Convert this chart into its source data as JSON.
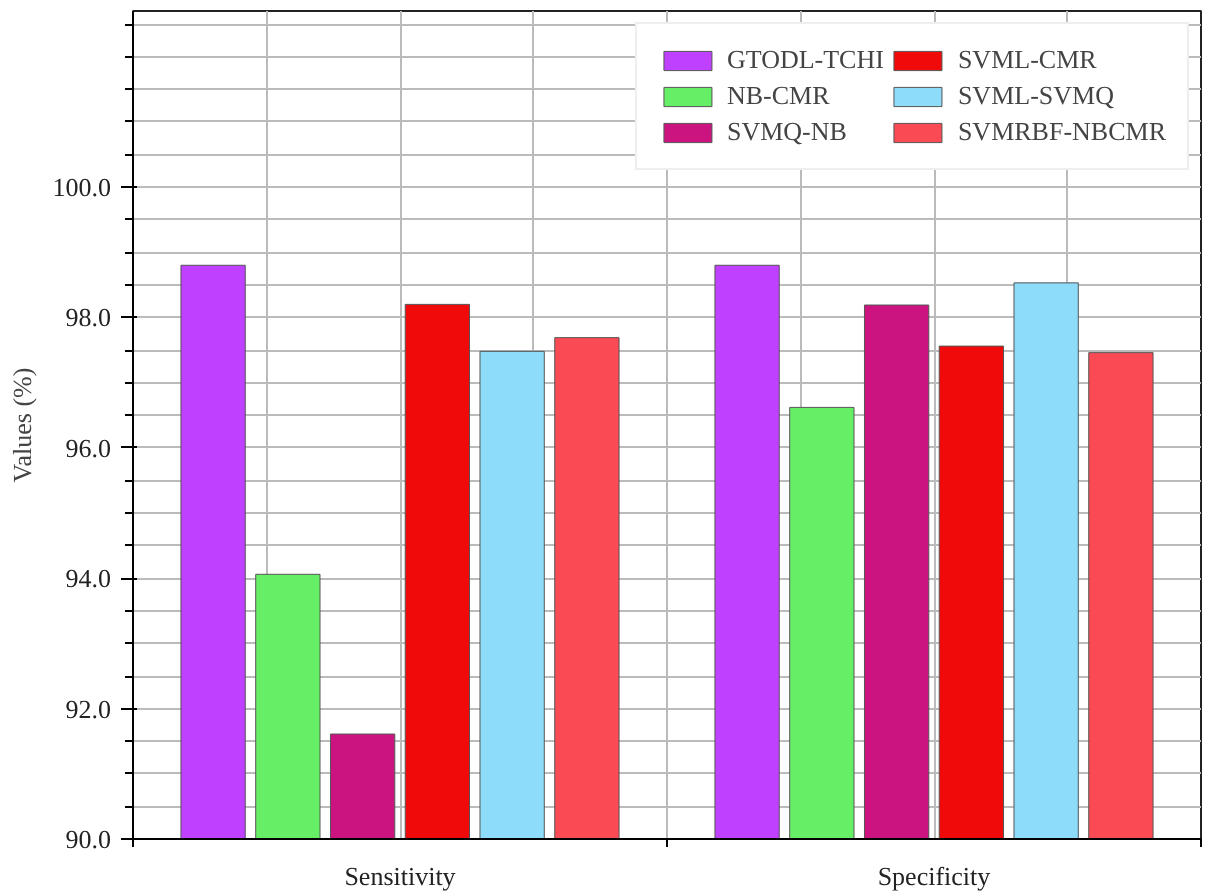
{
  "chart_data": {
    "type": "bar",
    "ylabel": "Values (%)",
    "categories": [
      "Sensitivity",
      "Specificity"
    ],
    "series": [
      {
        "name": "GTODL-TCHI",
        "color": "#bf40ff",
        "values": [
          98.8,
          98.8
        ]
      },
      {
        "name": "NB-CMR",
        "color": "#66ef66",
        "values": [
          94.06,
          96.62
        ]
      },
      {
        "name": "SVMQ-NB",
        "color": "#cc1480",
        "values": [
          91.61,
          98.19
        ]
      },
      {
        "name": "SVML-CMR",
        "color": "#f00a0a",
        "values": [
          98.2,
          97.56
        ]
      },
      {
        "name": "SVML-SVMQ",
        "color": "#8cdcfa",
        "values": [
          97.48,
          98.53
        ]
      },
      {
        "name": "SVMRBF-NBCMR",
        "color": "#fa4b55",
        "values": [
          97.69,
          97.46
        ]
      }
    ],
    "ylim": [
      90,
      102.7
    ],
    "yticks": [
      {
        "value": 90,
        "label": "90.0"
      },
      {
        "value": 92,
        "label": "92.0"
      },
      {
        "value": 94,
        "label": "94.0"
      },
      {
        "value": 96,
        "label": "96.0"
      },
      {
        "value": 98,
        "label": "98.0"
      },
      {
        "value": 100,
        "label": "100.0"
      }
    ],
    "grid": true,
    "legend": "top right"
  }
}
